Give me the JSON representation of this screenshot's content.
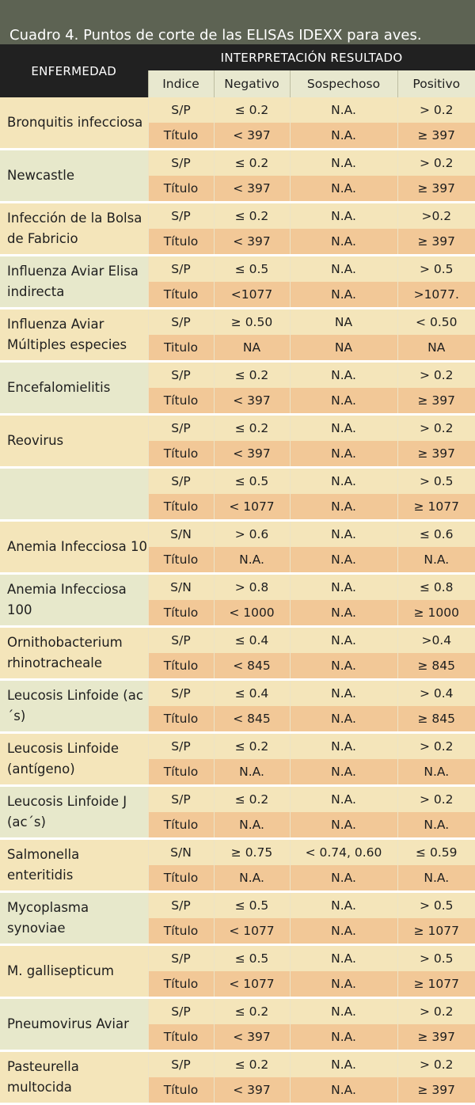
{
  "caption": "Cuadro 4. Puntos de corte de las ELISAs IDEXX para aves.",
  "header": {
    "disease": "ENFERMEDAD",
    "interpretation": "INTERPRETACIÓN  RESULTADO",
    "columns": [
      "Indice",
      "Negativo",
      "Sospechoso",
      "Positivo"
    ]
  },
  "rows": [
    {
      "name": "Bronquitis infecciosa",
      "r1": [
        "S/P",
        "≤ 0.2",
        "N.A.",
        "> 0.2"
      ],
      "r2": [
        "Título",
        "< 397",
        "N.A.",
        "≥ 397"
      ]
    },
    {
      "name": "Newcastle",
      "r1": [
        "S/P",
        "≤ 0.2",
        "N.A.",
        "> 0.2"
      ],
      "r2": [
        "Título",
        "< 397",
        "N.A.",
        "≥ 397"
      ]
    },
    {
      "name": "Infección de la Bolsa de Fabricio",
      "r1": [
        "S/P",
        "≤ 0.2",
        "N.A.",
        ">0.2"
      ],
      "r2": [
        "Título",
        "< 397",
        "N.A.",
        "≥ 397"
      ]
    },
    {
      "name": "Influenza Aviar Elisa indirecta",
      "r1": [
        "S/P",
        "≤ 0.5",
        "N.A.",
        "> 0.5"
      ],
      "r2": [
        "Título",
        "<1077",
        "N.A.",
        ">1077."
      ]
    },
    {
      "name": "Influenza Aviar Múltiples especies",
      "r1": [
        "S/P",
        "≥ 0.50",
        "NA",
        "< 0.50"
      ],
      "r2": [
        "Titulo",
        "NA",
        "NA",
        "NA"
      ]
    },
    {
      "name": "Encefalomielitis",
      "r1": [
        "S/P",
        "≤ 0.2",
        "N.A.",
        "> 0.2"
      ],
      "r2": [
        "Título",
        "< 397",
        "N.A.",
        "≥ 397"
      ]
    },
    {
      "name": "Reovirus",
      "r1": [
        "S/P",
        "≤ 0.2",
        "N.A.",
        "> 0.2"
      ],
      "r2": [
        "Título",
        "< 397",
        "N.A.",
        "≥ 397"
      ]
    },
    {
      "name": "",
      "r1": [
        "S/P",
        "≤ 0.5",
        "N.A.",
        "> 0.5"
      ],
      "r2": [
        "Título",
        "< 1077",
        "N.A.",
        "≥ 1077"
      ]
    },
    {
      "name": "Anemia Infecciosa 10",
      "r1": [
        "S/N",
        "> 0.6",
        "N.A.",
        "≤ 0.6"
      ],
      "r2": [
        "Título",
        "N.A.",
        "N.A.",
        "N.A."
      ]
    },
    {
      "name": "Anemia Infecciosa 100",
      "r1": [
        "S/N",
        "> 0.8",
        "N.A.",
        "≤ 0.8"
      ],
      "r2": [
        "Título",
        "< 1000",
        "N.A.",
        "≥ 1000"
      ]
    },
    {
      "name": "Ornithobacterium rhinotracheale",
      "r1": [
        "S/P",
        "≤ 0.4",
        "N.A.",
        ">0.4"
      ],
      "r2": [
        "Título",
        "< 845",
        "N.A.",
        "≥ 845"
      ]
    },
    {
      "name": "Leucosis Linfoide (ac´s)",
      "r1": [
        "S/P",
        "≤ 0.4",
        "N.A.",
        "> 0.4"
      ],
      "r2": [
        "Título",
        "< 845",
        "N.A.",
        "≥ 845"
      ]
    },
    {
      "name": "Leucosis Linfoide (antígeno)",
      "r1": [
        "S/P",
        "≤ 0.2",
        "N.A.",
        "> 0.2"
      ],
      "r2": [
        "Título",
        "N.A.",
        "N.A.",
        "N.A."
      ]
    },
    {
      "name": "Leucosis Linfoide J (ac´s)",
      "r1": [
        "S/P",
        "≤ 0.2",
        "N.A.",
        "> 0.2"
      ],
      "r2": [
        "Título",
        "N.A.",
        "N.A.",
        "N.A."
      ]
    },
    {
      "name": "Salmonella enteritidis",
      "r1": [
        "S/N",
        "≥ 0.75",
        "< 0.74, 0.60",
        "≤ 0.59"
      ],
      "r2": [
        "Título",
        "N.A.",
        "N.A.",
        "N.A."
      ]
    },
    {
      "name": "Mycoplasma synoviae",
      "r1": [
        "S/P",
        "≤ 0.5",
        "N.A.",
        "> 0.5"
      ],
      "r2": [
        "Título",
        "< 1077",
        "N.A.",
        "≥ 1077"
      ]
    },
    {
      "name": "M. gallisepticum",
      "r1": [
        "S/P",
        "≤ 0.5",
        "N.A.",
        "> 0.5"
      ],
      "r2": [
        "Título",
        "< 1077",
        "N.A.",
        "≥ 1077"
      ]
    },
    {
      "name": "Pneumovirus Aviar",
      "r1": [
        "S/P",
        "≤ 0.2",
        "N.A.",
        "> 0.2"
      ],
      "r2": [
        "Título",
        "< 397",
        "N.A.",
        "≥ 397"
      ]
    },
    {
      "name": "Pasteurella multocida",
      "r1": [
        "S/P",
        "≤ 0.2",
        "N.A.",
        "> 0.2"
      ],
      "r2": [
        "Título",
        "< 397",
        "N.A.",
        "≥ 397"
      ]
    }
  ],
  "colors": {
    "caption_bg": "#5d6353",
    "header_bg": "#212121",
    "subheader_bg": "#e8e8cf",
    "name_bg": "#dbe3c6",
    "sp_row_bg": "#f4e5ba",
    "title_row_bg": "#f2c897"
  }
}
